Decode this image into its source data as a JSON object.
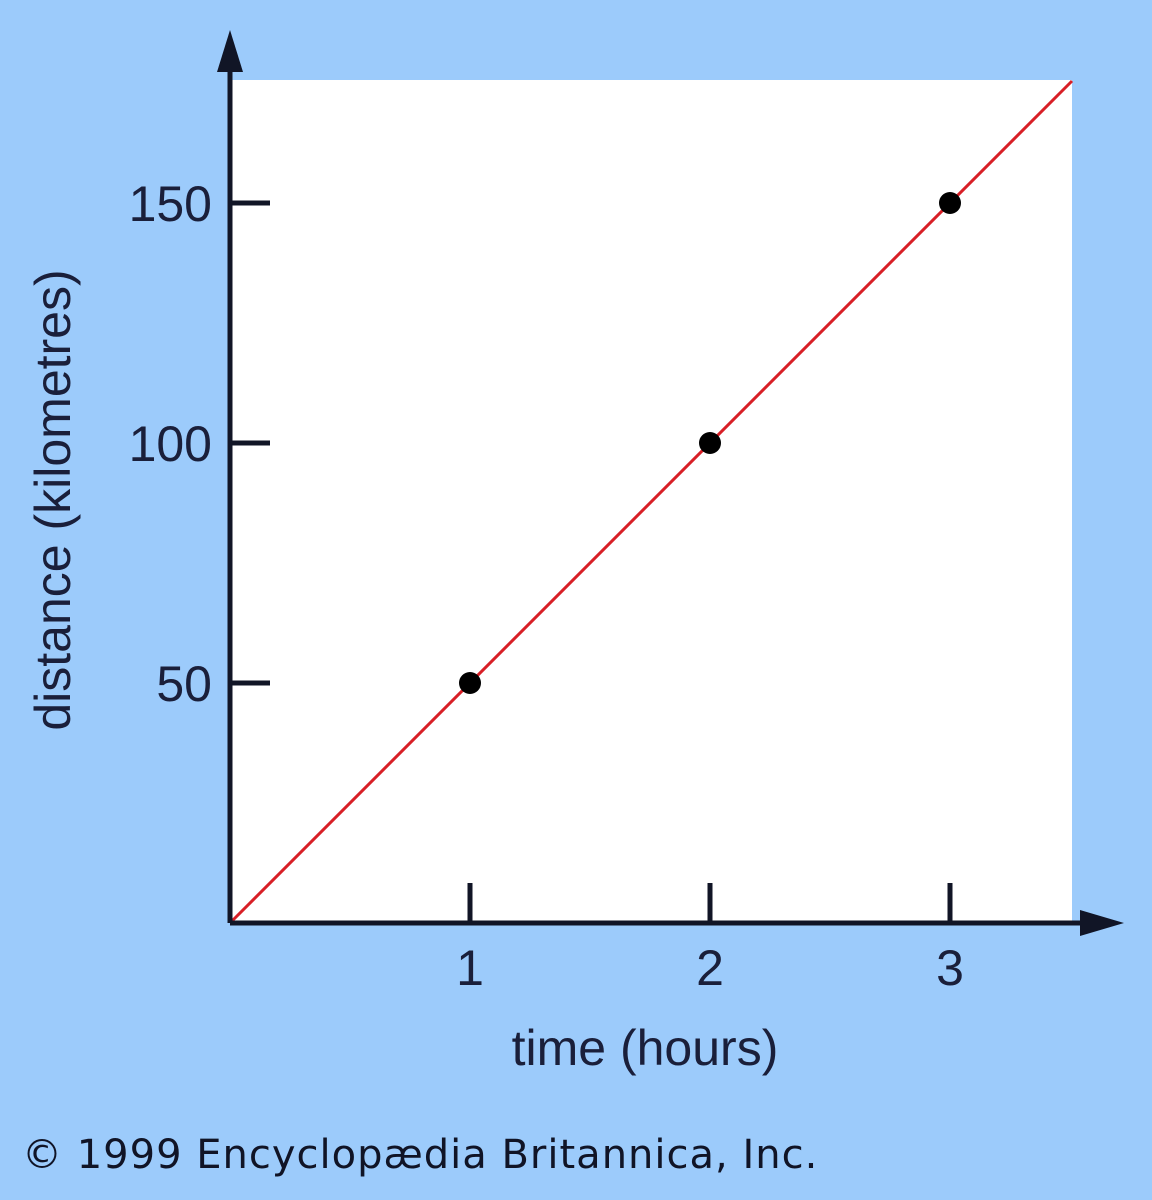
{
  "chart_data": {
    "type": "scatter",
    "title": "",
    "xlabel": "time (hours)",
    "ylabel": "distance (kilometres)",
    "x_ticks": [
      "1",
      "2",
      "3"
    ],
    "y_ticks": [
      "50",
      "100",
      "150"
    ],
    "xlim": [
      0,
      3.5
    ],
    "ylim": [
      0,
      175
    ],
    "points": [
      {
        "x": 1,
        "y": 50
      },
      {
        "x": 2,
        "y": 100
      },
      {
        "x": 3,
        "y": 150
      }
    ],
    "fit_line": {
      "slope": 50,
      "intercept": 0,
      "color": "#d81f26"
    },
    "grid": false,
    "legend": "none",
    "plot_background": "#ffffff",
    "page_background": "#9ccbfb"
  },
  "credit": "© 1999 Encyclopædia Britannica, Inc."
}
